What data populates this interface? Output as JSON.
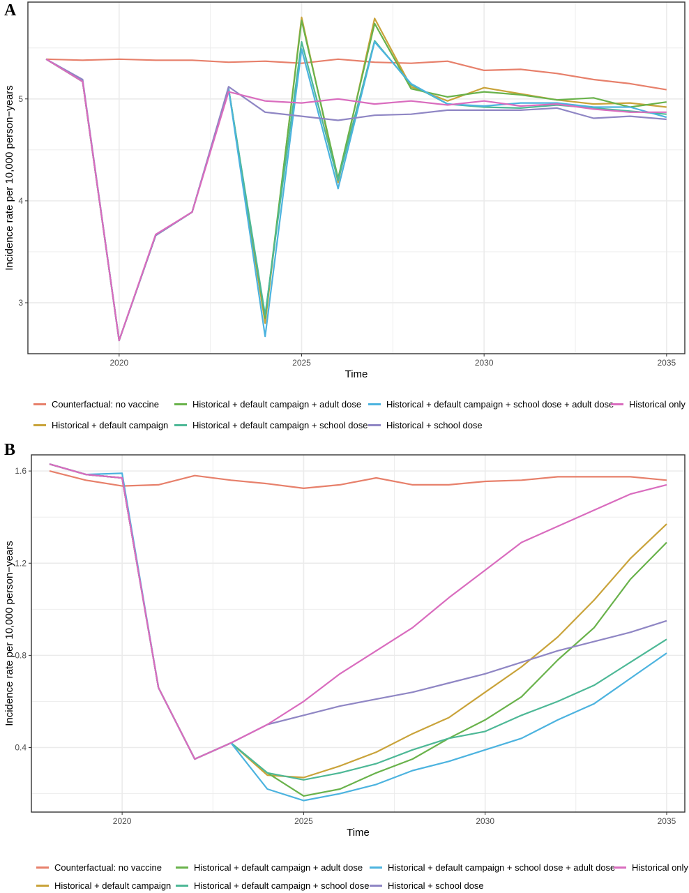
{
  "colors": {
    "Counterfactual: no vaccine": "#E7806B",
    "Historical + default campaign": "#C9A33A",
    "Historical + default campaign + adult dose": "#69B24B",
    "Historical + default campaign + school dose": "#4DB896",
    "Historical + default campaign + school dose + adult dose": "#4CB3DF",
    "Historical + school dose": "#8F86C4",
    "Historical only": "#D96CBE"
  },
  "legend": {
    "row1": [
      "Counterfactual: no vaccine",
      "Historical + default campaign + adult dose",
      "Historical + default campaign + school dose + adult dose",
      "Historical only"
    ],
    "row2": [
      "Historical + default campaign",
      "Historical + default campaign + school dose",
      "Historical + school dose"
    ]
  },
  "chart_data": [
    {
      "panel": "A",
      "type": "line",
      "xlabel": "Time",
      "ylabel": "Incidence rate per 10,000 person−years",
      "xlim": [
        2017.5,
        2035.5
      ],
      "ylim": [
        2.5,
        5.95
      ],
      "xticks": [
        2020,
        2025,
        2030,
        2035
      ],
      "yticks": [
        3,
        4,
        5
      ],
      "grid": true,
      "legend_position": "bottom",
      "x": [
        2018,
        2019,
        2020,
        2021,
        2022,
        2023,
        2024,
        2025,
        2026,
        2027,
        2028,
        2029,
        2030,
        2031,
        2032,
        2033,
        2034,
        2035
      ],
      "series": [
        {
          "name": "Counterfactual: no vaccine",
          "values": [
            5.39,
            5.38,
            5.39,
            5.38,
            5.38,
            5.36,
            5.37,
            5.35,
            5.39,
            5.36,
            5.35,
            5.37,
            5.28,
            5.29,
            5.25,
            5.19,
            5.15,
            5.09
          ]
        },
        {
          "name": "Historical + default campaign",
          "values": [
            5.39,
            5.17,
            2.63,
            3.66,
            3.89,
            5.1,
            2.8,
            5.8,
            4.18,
            5.79,
            5.12,
            4.98,
            5.11,
            5.05,
            4.99,
            4.95,
            4.96,
            4.92
          ]
        },
        {
          "name": "Historical + default campaign + adult dose",
          "values": [
            5.39,
            5.17,
            2.63,
            3.66,
            3.89,
            5.1,
            2.85,
            5.77,
            4.22,
            5.74,
            5.1,
            5.02,
            5.07,
            5.04,
            4.99,
            5.01,
            4.92,
            4.97
          ]
        },
        {
          "name": "Historical + default campaign + school dose",
          "values": [
            5.39,
            5.17,
            2.63,
            3.66,
            3.89,
            5.1,
            2.88,
            5.56,
            4.2,
            5.57,
            5.14,
            4.95,
            4.92,
            4.91,
            4.94,
            4.91,
            4.88,
            4.85
          ]
        },
        {
          "name": "Historical + default campaign + school dose + adult dose",
          "values": [
            5.39,
            5.18,
            2.63,
            3.66,
            3.89,
            5.1,
            2.67,
            5.49,
            4.12,
            5.56,
            5.15,
            4.95,
            4.93,
            4.96,
            4.96,
            4.92,
            4.92,
            4.82
          ]
        },
        {
          "name": "Historical + school dose",
          "values": [
            5.39,
            5.19,
            2.63,
            3.66,
            3.89,
            5.12,
            4.87,
            4.83,
            4.79,
            4.84,
            4.85,
            4.89,
            4.89,
            4.89,
            4.91,
            4.81,
            4.83,
            4.8
          ]
        },
        {
          "name": "Historical only",
          "values": [
            5.39,
            5.17,
            2.63,
            3.67,
            3.89,
            5.07,
            4.98,
            4.96,
            5.0,
            4.95,
            4.98,
            4.94,
            4.98,
            4.93,
            4.95,
            4.9,
            4.87,
            4.87
          ]
        }
      ]
    },
    {
      "panel": "B",
      "type": "line",
      "xlabel": "Time",
      "ylabel": "Incidence rate per 10,000 person−years",
      "xlim": [
        2017.5,
        2035.5
      ],
      "ylim": [
        0.12,
        1.67
      ],
      "xticks": [
        2020,
        2025,
        2030,
        2035
      ],
      "yticks": [
        0.4,
        0.8,
        1.2,
        1.6
      ],
      "grid": true,
      "legend_position": "bottom",
      "x": [
        2018,
        2019,
        2020,
        2021,
        2022,
        2023,
        2024,
        2025,
        2026,
        2027,
        2028,
        2029,
        2030,
        2031,
        2032,
        2033,
        2034,
        2035
      ],
      "series": [
        {
          "name": "Counterfactual: no vaccine",
          "values": [
            1.6,
            1.56,
            1.535,
            1.54,
            1.58,
            1.56,
            1.545,
            1.525,
            1.54,
            1.57,
            1.54,
            1.54,
            1.555,
            1.56,
            1.575,
            1.575,
            1.575,
            1.56
          ]
        },
        {
          "name": "Historical + default campaign",
          "values": [
            1.63,
            1.585,
            1.57,
            0.66,
            0.35,
            0.42,
            0.28,
            0.27,
            0.32,
            0.38,
            0.46,
            0.53,
            0.64,
            0.75,
            0.88,
            1.04,
            1.22,
            1.37
          ]
        },
        {
          "name": "Historical + default campaign + adult dose",
          "values": [
            1.63,
            1.585,
            1.57,
            0.66,
            0.35,
            0.42,
            0.29,
            0.19,
            0.22,
            0.29,
            0.35,
            0.44,
            0.52,
            0.62,
            0.78,
            0.92,
            1.13,
            1.29
          ]
        },
        {
          "name": "Historical + default campaign + school dose",
          "values": [
            1.63,
            1.585,
            1.57,
            0.66,
            0.35,
            0.42,
            0.29,
            0.26,
            0.29,
            0.33,
            0.39,
            0.44,
            0.47,
            0.54,
            0.6,
            0.67,
            0.77,
            0.87
          ]
        },
        {
          "name": "Historical + default campaign + school dose + adult dose",
          "values": [
            1.63,
            1.585,
            1.59,
            0.66,
            0.35,
            0.42,
            0.22,
            0.17,
            0.2,
            0.24,
            0.3,
            0.34,
            0.39,
            0.44,
            0.52,
            0.59,
            0.7,
            0.81
          ]
        },
        {
          "name": "Historical + school dose",
          "values": [
            1.63,
            1.585,
            1.57,
            0.66,
            0.35,
            0.42,
            0.5,
            0.54,
            0.58,
            0.61,
            0.64,
            0.68,
            0.72,
            0.77,
            0.82,
            0.86,
            0.9,
            0.95
          ]
        },
        {
          "name": "Historical only",
          "values": [
            1.63,
            1.585,
            1.57,
            0.66,
            0.35,
            0.42,
            0.5,
            0.6,
            0.72,
            0.82,
            0.92,
            1.05,
            1.17,
            1.29,
            1.36,
            1.43,
            1.5,
            1.54
          ]
        }
      ]
    }
  ]
}
